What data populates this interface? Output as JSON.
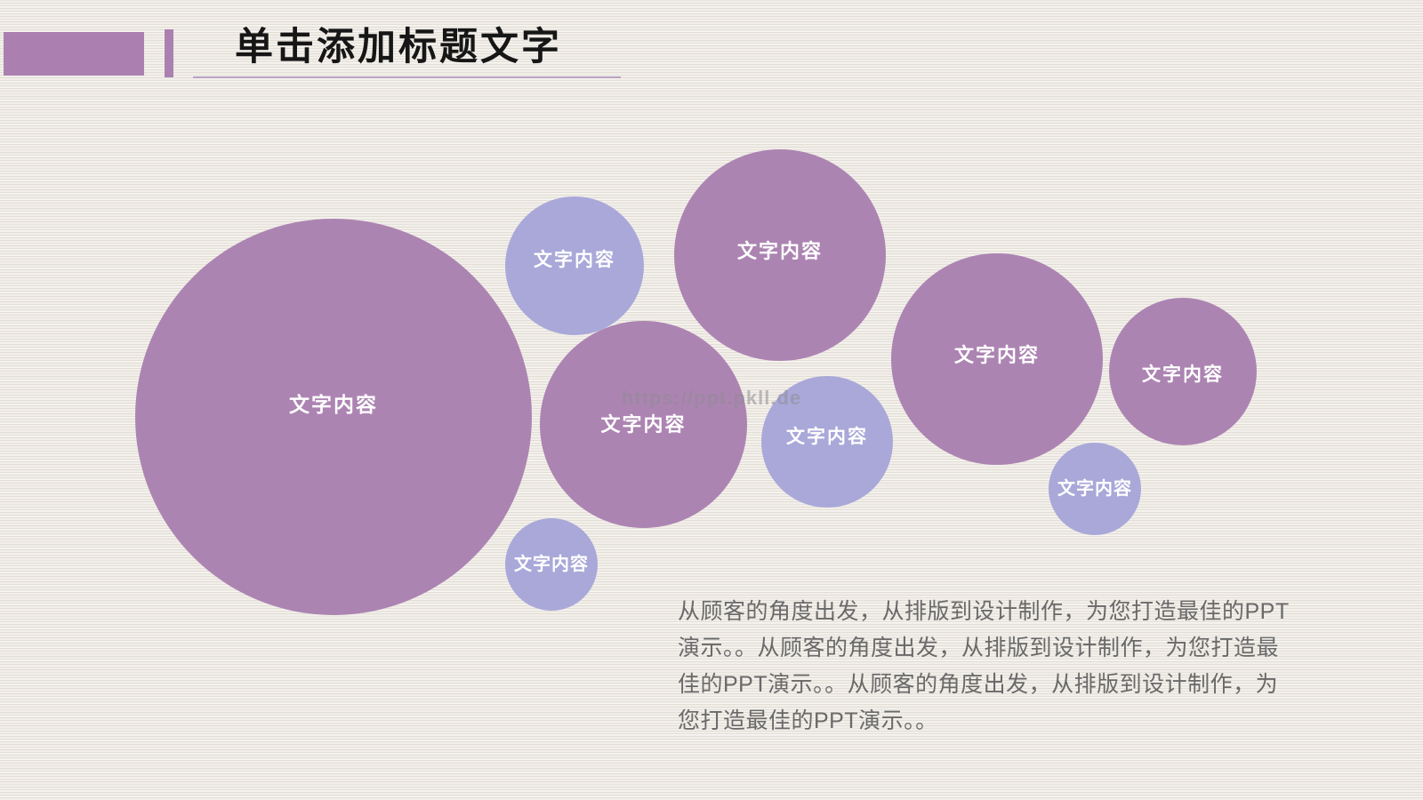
{
  "slide": {
    "title": "单击添加标题文字",
    "watermark": "https://ppt.pkll.de",
    "body_paragraph": "从顾客的角度出发，从排版到设计制作，为您打造最佳的PPT演示。。从顾客的角度出发，从排版到设计制作，为您打造最佳的PPT演示。。从顾客的角度出发，从排版到设计制作，为您打造最佳的PPT演示。。",
    "body_paragraph_lines": [
      "从顾客的角度出发，从排版到设计制作，为您打造最佳的PPT",
      "演示。。从顾客的角度出发，从排版到设计制作，为您打造最",
      "佳的PPT演示。。从顾客的角度出发，从排版到设计制作，为",
      "您打造最佳的PPT演示。。"
    ]
  },
  "bubbles": [
    {
      "id": "bubble-large-left",
      "label": "文字内容",
      "variant": "purple"
    },
    {
      "id": "bubble-top-small-lavender",
      "label": "文字内容",
      "variant": "lavender"
    },
    {
      "id": "bubble-top-purple",
      "label": "文字内容",
      "variant": "purple"
    },
    {
      "id": "bubble-middle-purple",
      "label": "文字内容",
      "variant": "purple"
    },
    {
      "id": "bubble-middle-lavender",
      "label": "文字内容",
      "variant": "lavender"
    },
    {
      "id": "bubble-right-purple",
      "label": "文字内容",
      "variant": "purple"
    },
    {
      "id": "bubble-far-right-purple",
      "label": "文字内容",
      "variant": "purple"
    },
    {
      "id": "bubble-bottom-right-lavender",
      "label": "文字内容",
      "variant": "lavender"
    },
    {
      "id": "bubble-bottom-left-lavender",
      "label": "文字内容",
      "variant": "lavender"
    }
  ],
  "colors": {
    "background": "#f2efea",
    "bubble_purple": "#ac84b2",
    "bubble_lavender": "#a9a8d9",
    "accent_bar": "#ab80b1",
    "title_underline": "#b7a3c4",
    "title_text": "#161616",
    "bubble_label_text": "#ffffff",
    "body_text": "#696969",
    "watermark_text": "#908d94"
  }
}
